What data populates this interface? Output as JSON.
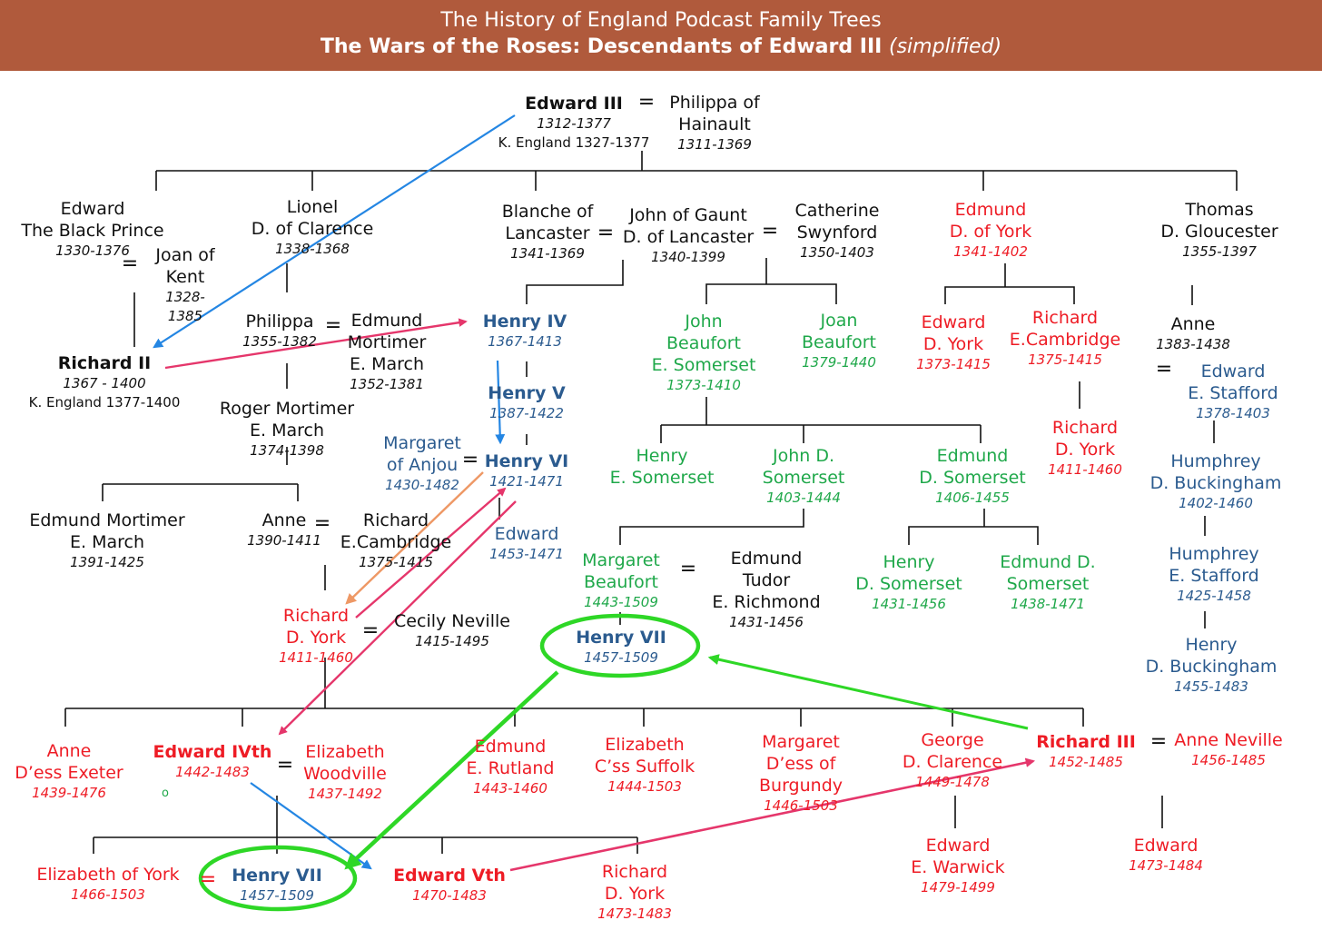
{
  "header": {
    "title": "The History of England Podcast Family Trees",
    "subtitle": "The Wars of the Roses: Descendants of Edward III",
    "subtitle_note": "(simplified)"
  },
  "marriage_symbol": "=",
  "stray_mark": "o",
  "people": {
    "edward_iii": {
      "name": "Edward III",
      "dates": "1312-1377",
      "title": "K. England 1327-1377"
    },
    "philippa_hainault": {
      "name_1": "Philippa of",
      "name_2": "Hainault",
      "dates": "1311-1369"
    },
    "black_prince": {
      "name_1": "Edward",
      "name_2": "The Black Prince",
      "dates": "1330-1376"
    },
    "joan_kent": {
      "name_1": "Joan of",
      "name_2": "Kent",
      "dates_1": "1328-",
      "dates_2": "1385"
    },
    "lionel": {
      "name_1": "Lionel",
      "name_2": "D. of Clarence",
      "dates": "1338-1368"
    },
    "blanche": {
      "name_1": "Blanche of",
      "name_2": "Lancaster",
      "dates": "1341-1369"
    },
    "john_gaunt": {
      "name_1": "John of Gaunt",
      "name_2": "D. of Lancaster",
      "dates": "1340-1399"
    },
    "catherine_swynford": {
      "name_1": "Catherine",
      "name_2": "Swynford",
      "dates": "1350-1403"
    },
    "edmund_york": {
      "name_1": "Edmund",
      "name_2": "D. of York",
      "dates": "1341-1402"
    },
    "thomas_gloucester": {
      "name_1": "Thomas",
      "name_2": "D. Gloucester",
      "dates": "1355-1397"
    },
    "philippa": {
      "name": "Philippa",
      "dates": "1355-1382"
    },
    "edmund_mortimer_1": {
      "name_1": "Edmund",
      "name_2": "Mortimer",
      "name_3": "E. March",
      "dates": "1352-1381"
    },
    "richard_ii": {
      "name": "Richard II",
      "dates": "1367 - 1400",
      "title": "K. England 1377-1400"
    },
    "roger_mortimer": {
      "name_1": "Roger Mortimer",
      "name_2": "E. March",
      "dates": "1374-1398"
    },
    "henry_iv": {
      "name": "Henry IV",
      "dates": "1367-1413"
    },
    "henry_v": {
      "name": "Henry V",
      "dates": "1387-1422"
    },
    "margaret_anjou": {
      "name_1": "Margaret",
      "name_2": "of Anjou",
      "dates": "1430-1482"
    },
    "henry_vi": {
      "name": "Henry VI",
      "dates": "1421-1471"
    },
    "edward_lancaster": {
      "name": "Edward",
      "dates": "1453-1471"
    },
    "john_beaufort": {
      "name_1": "John",
      "name_2": "Beaufort",
      "name_3": "E. Somerset",
      "dates": "1373-1410"
    },
    "joan_beaufort": {
      "name_1": "Joan",
      "name_2": "Beaufort",
      "dates": "1379-1440"
    },
    "edward_york": {
      "name_1": "Edward",
      "name_2": "D. York",
      "dates": "1373-1415"
    },
    "richard_cambridge_1": {
      "name_1": "Richard",
      "name_2": "E.Cambridge",
      "dates": "1375-1415"
    },
    "anne_gloucester": {
      "name": "Anne",
      "dates": "1383-1438"
    },
    "edward_stafford": {
      "name_1": "Edward",
      "name_2": "E. Stafford",
      "dates": "1378-1403"
    },
    "henry_somerset_1": {
      "name_1": "Henry",
      "name_2": "E. Somerset"
    },
    "john_somerset": {
      "name_1": "John  D.",
      "name_2": "Somerset",
      "dates": "1403-1444"
    },
    "edmund_somerset": {
      "name_1": "Edmund",
      "name_2": "D. Somerset",
      "dates": "1406-1455"
    },
    "richard_york_1": {
      "name_1": "Richard",
      "name_2": "D. York",
      "dates": "1411-1460"
    },
    "humphrey_buckingham": {
      "name_1": "Humphrey",
      "name_2": "D. Buckingham",
      "dates": "1402-1460"
    },
    "edmund_mortimer_2": {
      "name_1": "Edmund Mortimer",
      "name_2": "E. March",
      "dates": "1391-1425"
    },
    "anne_mortimer": {
      "name": "Anne",
      "dates": "1390-1411"
    },
    "richard_cambridge_2": {
      "name_1": "Richard",
      "name_2": "E.Cambridge",
      "dates": "1375-1415"
    },
    "margaret_beaufort": {
      "name_1": "Margaret",
      "name_2": "Beaufort",
      "dates": "1443-1509"
    },
    "edmund_tudor": {
      "name_1": "Edmund",
      "name_2": "Tudor",
      "name_3": "E. Richmond",
      "dates": "1431-1456"
    },
    "henry_somerset_2": {
      "name_1": "Henry",
      "name_2": "D. Somerset",
      "dates": "1431-1456"
    },
    "edmund_d_somerset": {
      "name_1": "Edmund  D.",
      "name_2": "Somerset",
      "dates": "1438-1471"
    },
    "humphrey_stafford": {
      "name_1": "Humphrey",
      "name_2": "E. Stafford",
      "dates": "1425-1458"
    },
    "richard_york_2": {
      "name_1": "Richard",
      "name_2": "D. York",
      "dates": "1411-1460"
    },
    "cecily_neville": {
      "name": "Cecily Neville",
      "dates": "1415-1495"
    },
    "henry_vii_1": {
      "name": "Henry VII",
      "dates": "1457-1509"
    },
    "henry_buckingham": {
      "name_1": "Henry",
      "name_2": "D. Buckingham",
      "dates": "1455-1483"
    },
    "anne_exeter": {
      "name_1": "Anne",
      "name_2": "D’ess Exeter",
      "dates": "1439-1476"
    },
    "edward_iv": {
      "name": "Edward IVth",
      "dates": "1442-1483"
    },
    "elizabeth_woodville": {
      "name_1": "Elizabeth",
      "name_2": "Woodville",
      "dates": "1437-1492"
    },
    "edmund_rutland": {
      "name_1": "Edmund",
      "name_2": "E. Rutland",
      "dates": "1443-1460"
    },
    "elizabeth_suffolk": {
      "name_1": "Elizabeth",
      "name_2": "C’ss Suffolk",
      "dates": "1444-1503"
    },
    "margaret_burgundy": {
      "name_1": "Margaret",
      "name_2": "D’ess of",
      "name_3": "Burgundy",
      "dates": "1446-1503"
    },
    "george_clarence": {
      "name_1": "George",
      "name_2": "D. Clarence",
      "dates": "1449-1478"
    },
    "richard_iii": {
      "name": "Richard III",
      "dates": "1452-1485"
    },
    "anne_neville": {
      "name": "Anne Neville",
      "dates": "1456-1485"
    },
    "elizabeth_york": {
      "name": "Elizabeth of York",
      "dates": "1466-1503"
    },
    "henry_vii_2": {
      "name": "Henry VII",
      "dates": "1457-1509"
    },
    "edward_v": {
      "name": "Edward Vth",
      "dates": "1470-1483"
    },
    "richard_york_3": {
      "name_1": "Richard",
      "name_2": "D. York",
      "dates": "1473-1483"
    },
    "edward_warwick": {
      "name_1": "Edward",
      "name_2": "E. Warwick",
      "dates": "1479-1499"
    },
    "edward_son_richard": {
      "name": "Edward",
      "dates": "1473-1484"
    }
  },
  "colors": {
    "banner": "#b05a3c",
    "plantagenet": "#111111",
    "york": "#ee1c25",
    "beaufort": "#1fa84a",
    "lancaster_king": "#2b5b8f",
    "arrow_blue": "#2486e3",
    "arrow_pink": "#e5366b",
    "arrow_orange": "#ee9865",
    "arrow_green": "#2ed726",
    "highlight_ring": "#2ed726"
  }
}
